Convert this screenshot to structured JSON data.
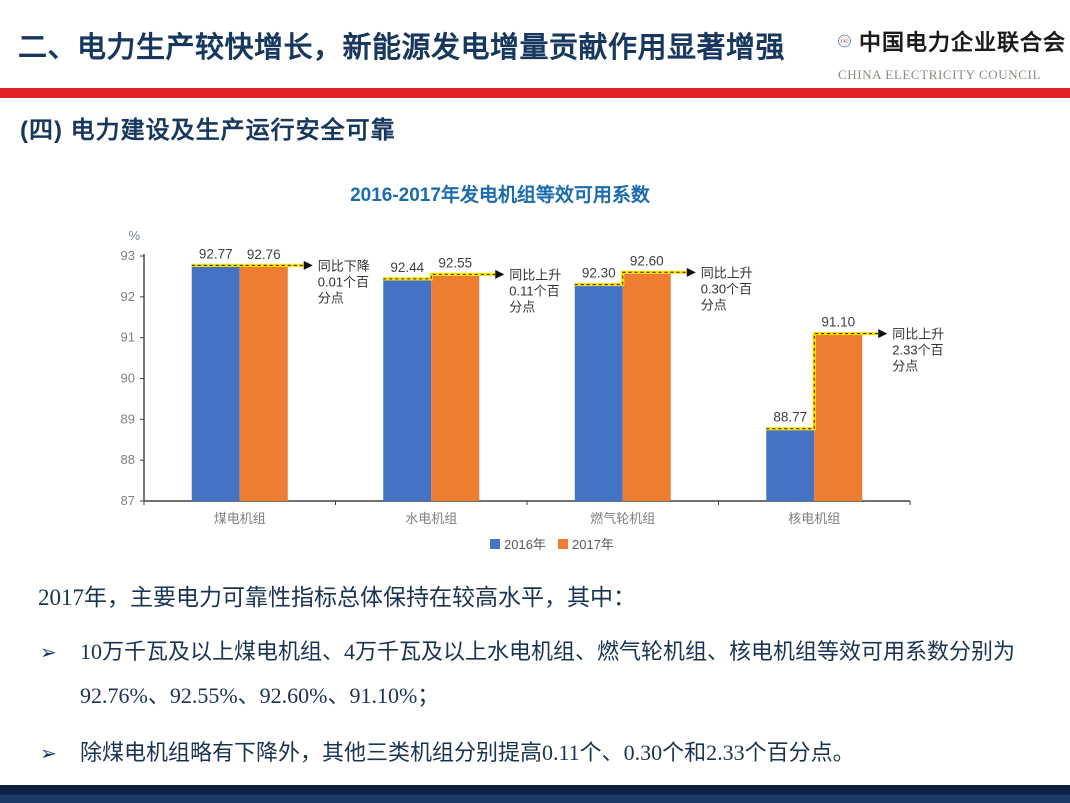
{
  "header": {
    "title": "二、电力生产较快增长，新能源发电增量贡献作用显著增强",
    "logo": {
      "emblem_letters": "CEC",
      "name_cn": "中国电力企业联合会",
      "name_en": "CHINA ELECTRICITY COUNCIL"
    }
  },
  "section": {
    "heading": "(四)  电力建设及生产运行安全可靠"
  },
  "chart_data": {
    "type": "bar",
    "title": "2016-2017年发电机组等效可用系数",
    "unit_label": "%",
    "categories": [
      "煤电机组",
      "水电机组",
      "燃气轮机组",
      "核电机组"
    ],
    "series": [
      {
        "name": "2016年",
        "color": "#4472C4",
        "values": [
          92.77,
          92.44,
          92.3,
          88.77
        ]
      },
      {
        "name": "2017年",
        "color": "#ED7D31",
        "values": [
          92.76,
          92.55,
          92.6,
          91.1
        ]
      }
    ],
    "ylim": [
      87,
      93
    ],
    "yticks": [
      87,
      88,
      89,
      90,
      91,
      92,
      93
    ],
    "grid": false,
    "legend_position": "bottom",
    "annotations": [
      {
        "lines": [
          "同比下降",
          "0.01个百",
          "分点"
        ]
      },
      {
        "lines": [
          "同比上升",
          "0.11个百",
          "分点"
        ]
      },
      {
        "lines": [
          "同比上升",
          "0.30个百",
          "分点"
        ]
      },
      {
        "lines": [
          "同比上升",
          "2.33个百",
          "分点"
        ]
      }
    ],
    "connector_color": "#FFE100"
  },
  "body": {
    "intro": "2017年，主要电力可靠性指标总体保持在较高水平，其中：",
    "bullets": [
      {
        "marker": "➢",
        "text": "10万千瓦及以上煤电机组、4万千瓦及以上水电机组、燃气轮机组、核电机组等效可用系数分别为92.76%、92.55%、92.60%、91.10%；"
      },
      {
        "marker": "➢",
        "text": "除煤电机组略有下降外，其他三类机组分别提高0.11个、0.30个和2.33个百分点。"
      }
    ]
  },
  "colors": {
    "navy_text": "#17375E",
    "body_navy": "#1A3353",
    "red_bar": "#E01F26",
    "chart_title_blue": "#1C6BAD",
    "bar_blue": "#4472C4",
    "bar_orange": "#ED7D31",
    "connector_yellow": "#FFE100",
    "footer_navy": "#0C2140",
    "axis_gray": "#7F7F7F"
  }
}
